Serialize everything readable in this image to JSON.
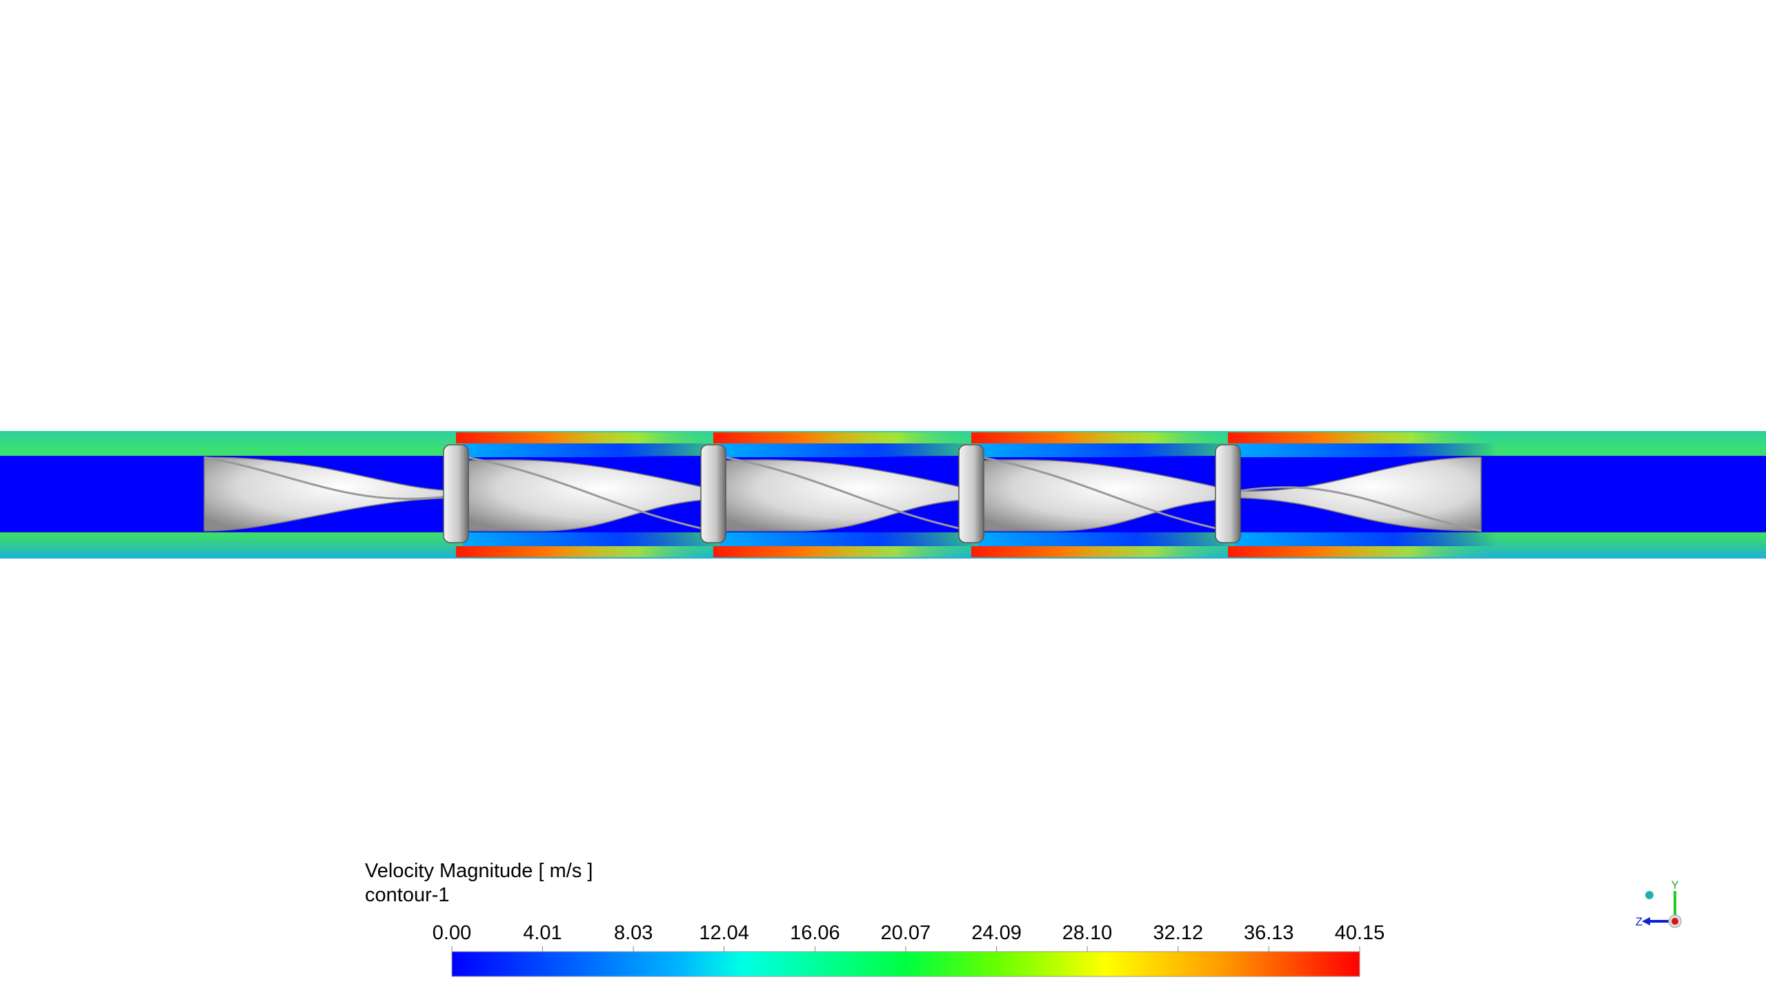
{
  "legend": {
    "title": "Velocity Magnitude [ m/s ]",
    "subtitle": "contour-1",
    "ticks": [
      {
        "value": 0,
        "label": "0.00"
      },
      4.01,
      8.03,
      12.04,
      16.06,
      20.07,
      24.09,
      {
        "value": 28.1,
        "label": "28.10"
      },
      32.12,
      36.13,
      40.15
    ]
  },
  "axes_triad": {
    "y_label": "Y",
    "z_label": "Z"
  }
}
